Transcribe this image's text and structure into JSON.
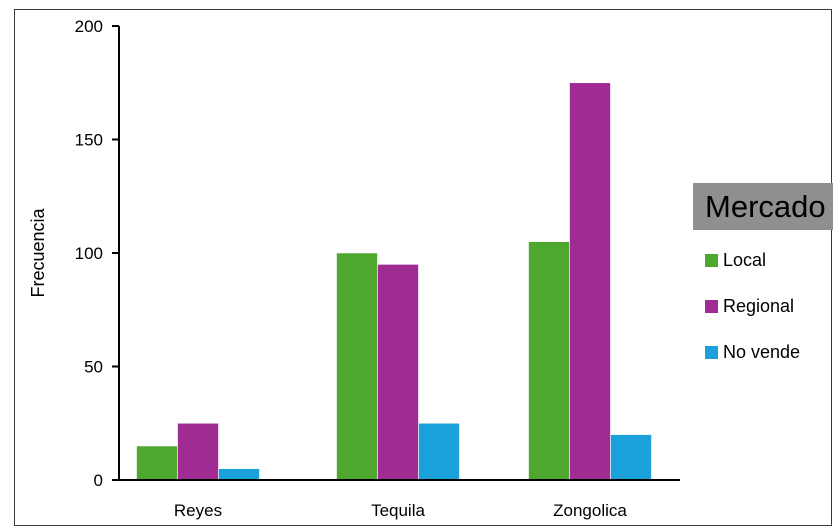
{
  "chart_data": {
    "type": "bar",
    "categories": [
      "Reyes",
      "Tequila",
      "Zongolica"
    ],
    "series": [
      {
        "name": "Local",
        "values": [
          15,
          100,
          105
        ],
        "color": "#4ea72e"
      },
      {
        "name": "Regional",
        "values": [
          25,
          95,
          175
        ],
        "color": "#a02b93"
      },
      {
        "name": "No vende",
        "values": [
          5,
          25,
          20
        ],
        "color": "#1aa1dc"
      }
    ],
    "title": "",
    "xlabel": "",
    "ylabel": "Frecuencia",
    "ylim": [
      0,
      200
    ],
    "yticks": [
      "0",
      "50",
      "100",
      "150",
      "200"
    ],
    "grid": false,
    "legend": {
      "title": "Mercado",
      "placement": "right"
    }
  }
}
